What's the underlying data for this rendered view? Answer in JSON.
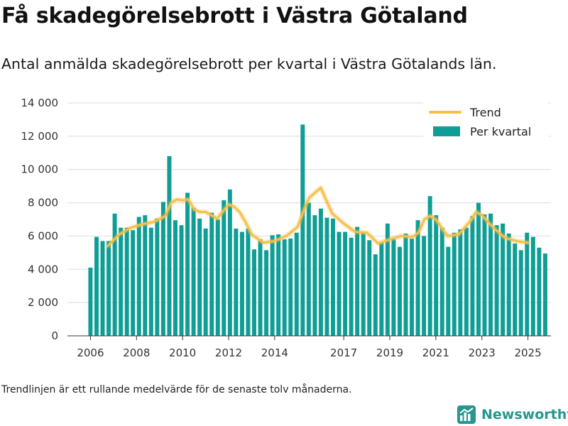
{
  "title": "Få skadegörelsebrott i Västra Götaland",
  "subtitle": "Antal anmälda skadegörelsebrott per kvartal i Västra Götalands län.",
  "footnote": "Trendlinjen är ett rullande medelvärde för de senaste tolv månaderna.",
  "brand": "Newsworthy",
  "colors": {
    "bar": "#0f9e95",
    "trend": "#f5c04a",
    "grid": "#dddddd",
    "brand": "#25978f"
  },
  "chart_data": {
    "type": "bar",
    "title": "Få skadegörelsebrott i Västra Götaland",
    "ylim": [
      0,
      14000
    ],
    "yticks": [
      0,
      2000,
      4000,
      6000,
      8000,
      10000,
      12000,
      14000
    ],
    "ytick_labels": [
      "0",
      "2 000",
      "4 000",
      "6 000",
      "8 000",
      "10 000",
      "12 000",
      "14 000"
    ],
    "xticks": [
      2006,
      2008,
      2010,
      2012,
      2014,
      2017,
      2019,
      2021,
      2023,
      2025
    ],
    "xtick_labels": [
      "2006",
      "2008",
      "2010",
      "2012",
      "2014",
      "2017",
      "2019",
      "2021",
      "2023",
      "2025"
    ],
    "x_start": 2006.0,
    "x_end": 2025.75,
    "legend_position": "top-right",
    "series": [
      {
        "name": "Per kvartal",
        "type": "bar",
        "values": [
          4100,
          5950,
          5700,
          5700,
          7350,
          6500,
          6500,
          6350,
          7150,
          7250,
          6500,
          7050,
          8050,
          10800,
          6950,
          6650,
          8600,
          7700,
          7050,
          6450,
          7400,
          7000,
          8150,
          8800,
          6450,
          6250,
          6450,
          5200,
          5800,
          5150,
          6050,
          6100,
          5800,
          5850,
          6200,
          12700,
          8000,
          7250,
          7650,
          7100,
          7050,
          6250,
          6250,
          5900,
          6550,
          6200,
          5750,
          4900,
          5600,
          6750,
          5800,
          5350,
          6150,
          5850,
          6950,
          6000,
          8400,
          7250,
          6500,
          5350,
          6200,
          6400,
          6500,
          7200,
          8000,
          7300,
          7350,
          6650,
          6750,
          6150,
          5550,
          5150,
          6200,
          5950,
          5300,
          4950
        ]
      },
      {
        "name": "Trend",
        "type": "line",
        "x": [
          2006.75,
          2007.25,
          2007.75,
          2008.25,
          2008.75,
          2009.25,
          2009.5,
          2009.75,
          2010.0,
          2010.25,
          2010.5,
          2010.75,
          2011.0,
          2011.5,
          2012.0,
          2012.25,
          2012.5,
          2012.75,
          2013.0,
          2013.5,
          2014.0,
          2014.5,
          2015.0,
          2015.25,
          2015.5,
          2015.75,
          2016.0,
          2016.5,
          2017.0,
          2017.5,
          2018.0,
          2018.5,
          2019.0,
          2019.5,
          2020.0,
          2020.25,
          2020.5,
          2020.75,
          2021.0,
          2021.5,
          2022.0,
          2022.5,
          2022.75,
          2023.0,
          2023.5,
          2024.0,
          2024.5,
          2025.0
        ],
        "values": [
          5400,
          6100,
          6500,
          6700,
          6850,
          7200,
          8000,
          8200,
          8150,
          8200,
          7600,
          7450,
          7450,
          7050,
          7900,
          7750,
          7400,
          6800,
          6100,
          5600,
          5700,
          6000,
          6550,
          7500,
          8300,
          8600,
          8900,
          7350,
          6750,
          6250,
          6200,
          5550,
          5800,
          6000,
          5950,
          6200,
          7000,
          7200,
          7000,
          6000,
          6100,
          6900,
          7450,
          7250,
          6500,
          5900,
          5700,
          5600
        ]
      }
    ]
  }
}
